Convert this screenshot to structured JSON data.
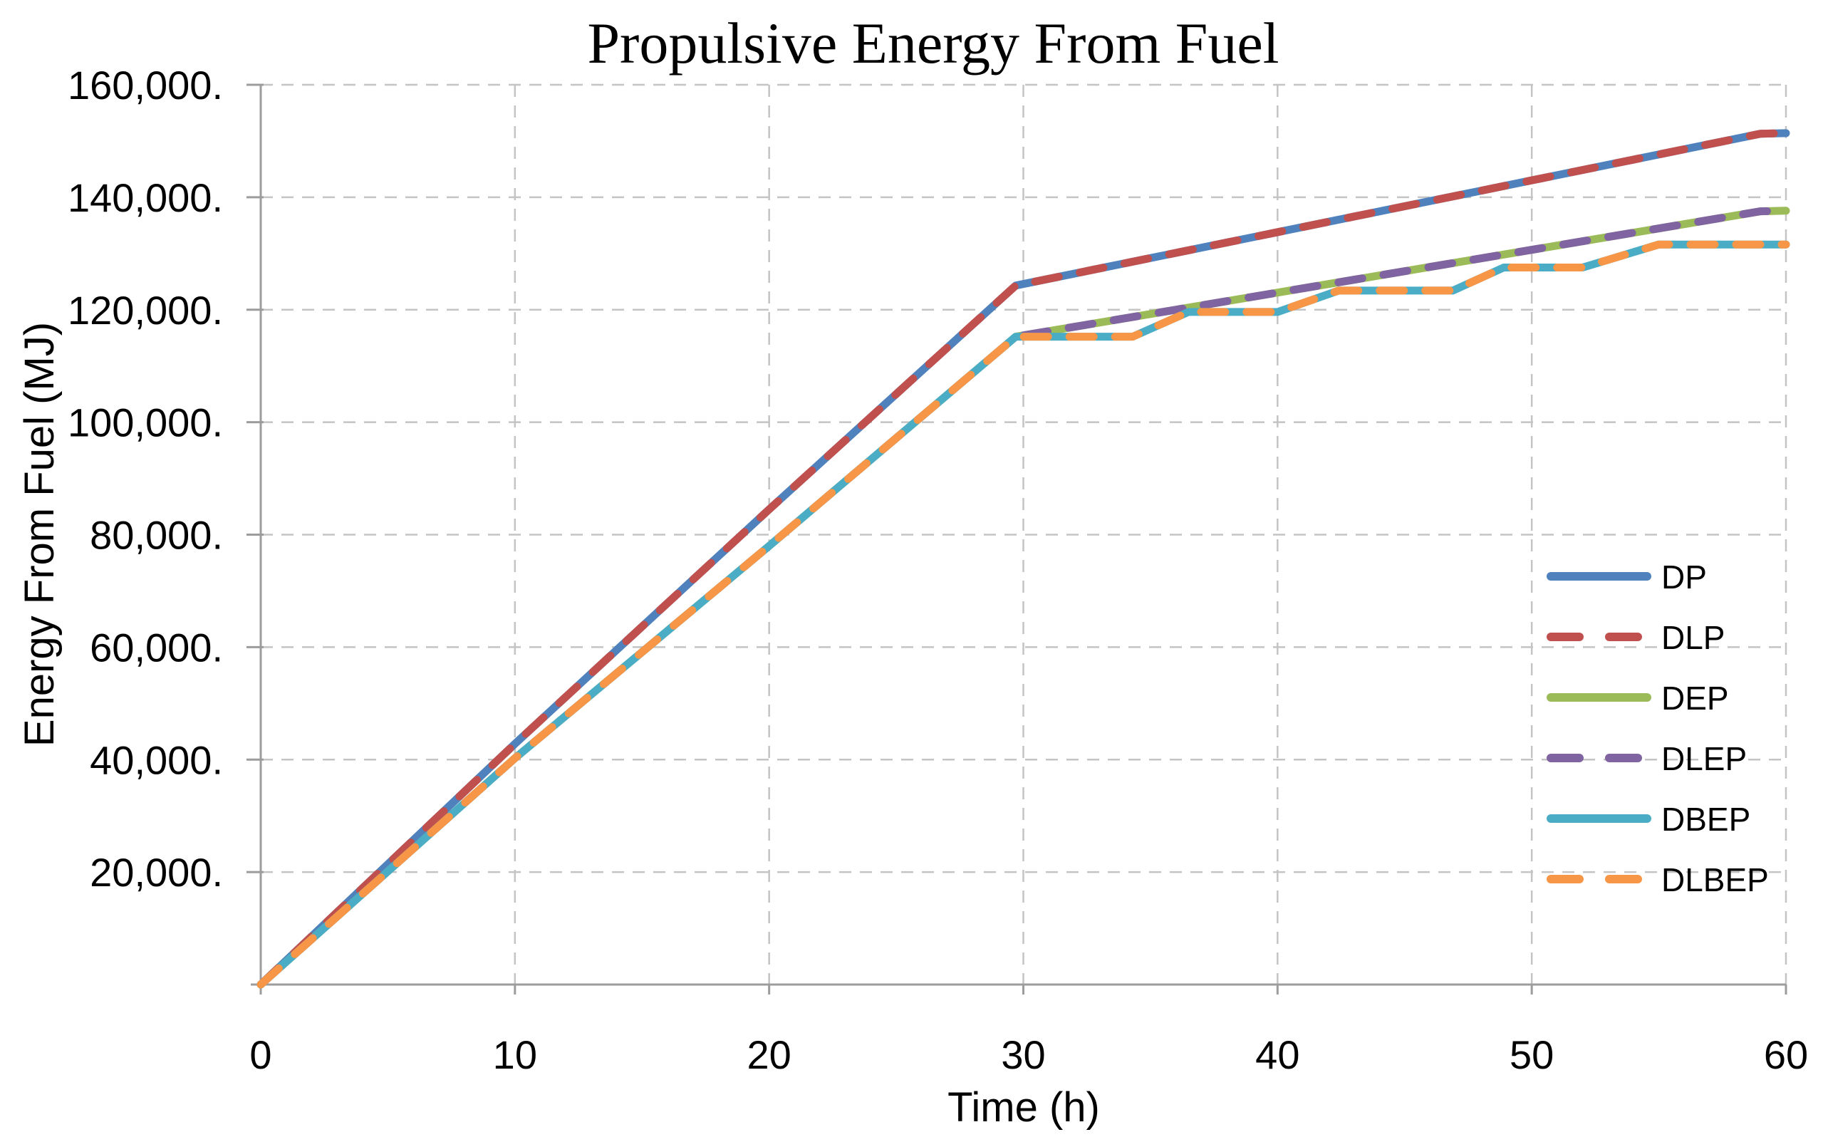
{
  "chart_data": {
    "type": "line",
    "title": "Propulsive Energy From Fuel",
    "xlabel": "Time (h)",
    "ylabel": "Energy From Fuel (MJ)",
    "xlim": [
      0,
      60
    ],
    "ylim": [
      0,
      160000
    ],
    "grid": true,
    "legend_position": "inside-right",
    "x_ticks": [
      0,
      10,
      20,
      30,
      40,
      50,
      60
    ],
    "x_tick_labels": [
      "0",
      "10",
      "20",
      "30",
      "40",
      "50",
      "60"
    ],
    "y_ticks": [
      20000,
      40000,
      60000,
      80000,
      100000,
      120000,
      140000,
      160000
    ],
    "y_tick_labels": [
      "20,000.",
      "40,000.",
      "60,000.",
      "80,000.",
      "100,000.",
      "120,000.",
      "140,000.",
      "160,000."
    ],
    "series": [
      {
        "name": "DP",
        "color": "#4F81BD",
        "style": "solid",
        "points": [
          [
            0,
            0
          ],
          [
            10,
            42800
          ],
          [
            20,
            84500
          ],
          [
            29.7,
            124300
          ],
          [
            59,
            151300
          ],
          [
            60,
            151400
          ]
        ]
      },
      {
        "name": "DLP",
        "color": "#C0504D",
        "style": "dashed",
        "points": [
          [
            0,
            0
          ],
          [
            10,
            42800
          ],
          [
            20,
            84500
          ],
          [
            29.7,
            124300
          ],
          [
            59,
            151300
          ],
          [
            60,
            151400
          ]
        ]
      },
      {
        "name": "DEP",
        "color": "#9BBB59",
        "style": "solid",
        "points": [
          [
            0,
            0
          ],
          [
            10,
            40250
          ],
          [
            20,
            78000
          ],
          [
            29.7,
            115200
          ],
          [
            59,
            137500
          ],
          [
            60,
            137600
          ]
        ]
      },
      {
        "name": "DLEP",
        "color": "#8064A2",
        "style": "dashed",
        "points": [
          [
            0,
            0
          ],
          [
            10,
            40250
          ],
          [
            20,
            78000
          ],
          [
            29.7,
            115200
          ],
          [
            59,
            137500
          ],
          [
            60,
            137600
          ]
        ]
      },
      {
        "name": "DBEP",
        "color": "#4BACC6",
        "style": "solid",
        "points": [
          [
            0,
            0
          ],
          [
            10,
            40250
          ],
          [
            20,
            78000
          ],
          [
            29.7,
            115200
          ],
          [
            34.3,
            115200
          ],
          [
            36.5,
            119600
          ],
          [
            40,
            119600
          ],
          [
            42.4,
            123400
          ],
          [
            46.9,
            123400
          ],
          [
            48.9,
            127500
          ],
          [
            52,
            127500
          ],
          [
            55,
            131600
          ],
          [
            60,
            131600
          ]
        ]
      },
      {
        "name": "DLBEP",
        "color": "#F79646",
        "style": "dashed",
        "points": [
          [
            0,
            0
          ],
          [
            10,
            40250
          ],
          [
            20,
            78000
          ],
          [
            29.7,
            115200
          ],
          [
            34.3,
            115200
          ],
          [
            36.5,
            119600
          ],
          [
            40,
            119600
          ],
          [
            42.4,
            123400
          ],
          [
            46.9,
            123400
          ],
          [
            48.9,
            127500
          ],
          [
            52,
            127500
          ],
          [
            55,
            131600
          ],
          [
            60,
            131600
          ]
        ]
      }
    ],
    "legend": [
      "DP",
      "DLP",
      "DEP",
      "DLEP",
      "DBEP",
      "DLBEP"
    ]
  },
  "colors": {
    "background": "#FFFFFF",
    "gridline": "#C4C4C4",
    "axis_line": "#9C9C9C",
    "text": "#000000",
    "series_blue": "#4F81BD",
    "series_red": "#C0504D",
    "series_green": "#9BBB59",
    "series_purple": "#8064A2",
    "series_teal": "#4BACC6",
    "series_orange": "#F79646"
  }
}
